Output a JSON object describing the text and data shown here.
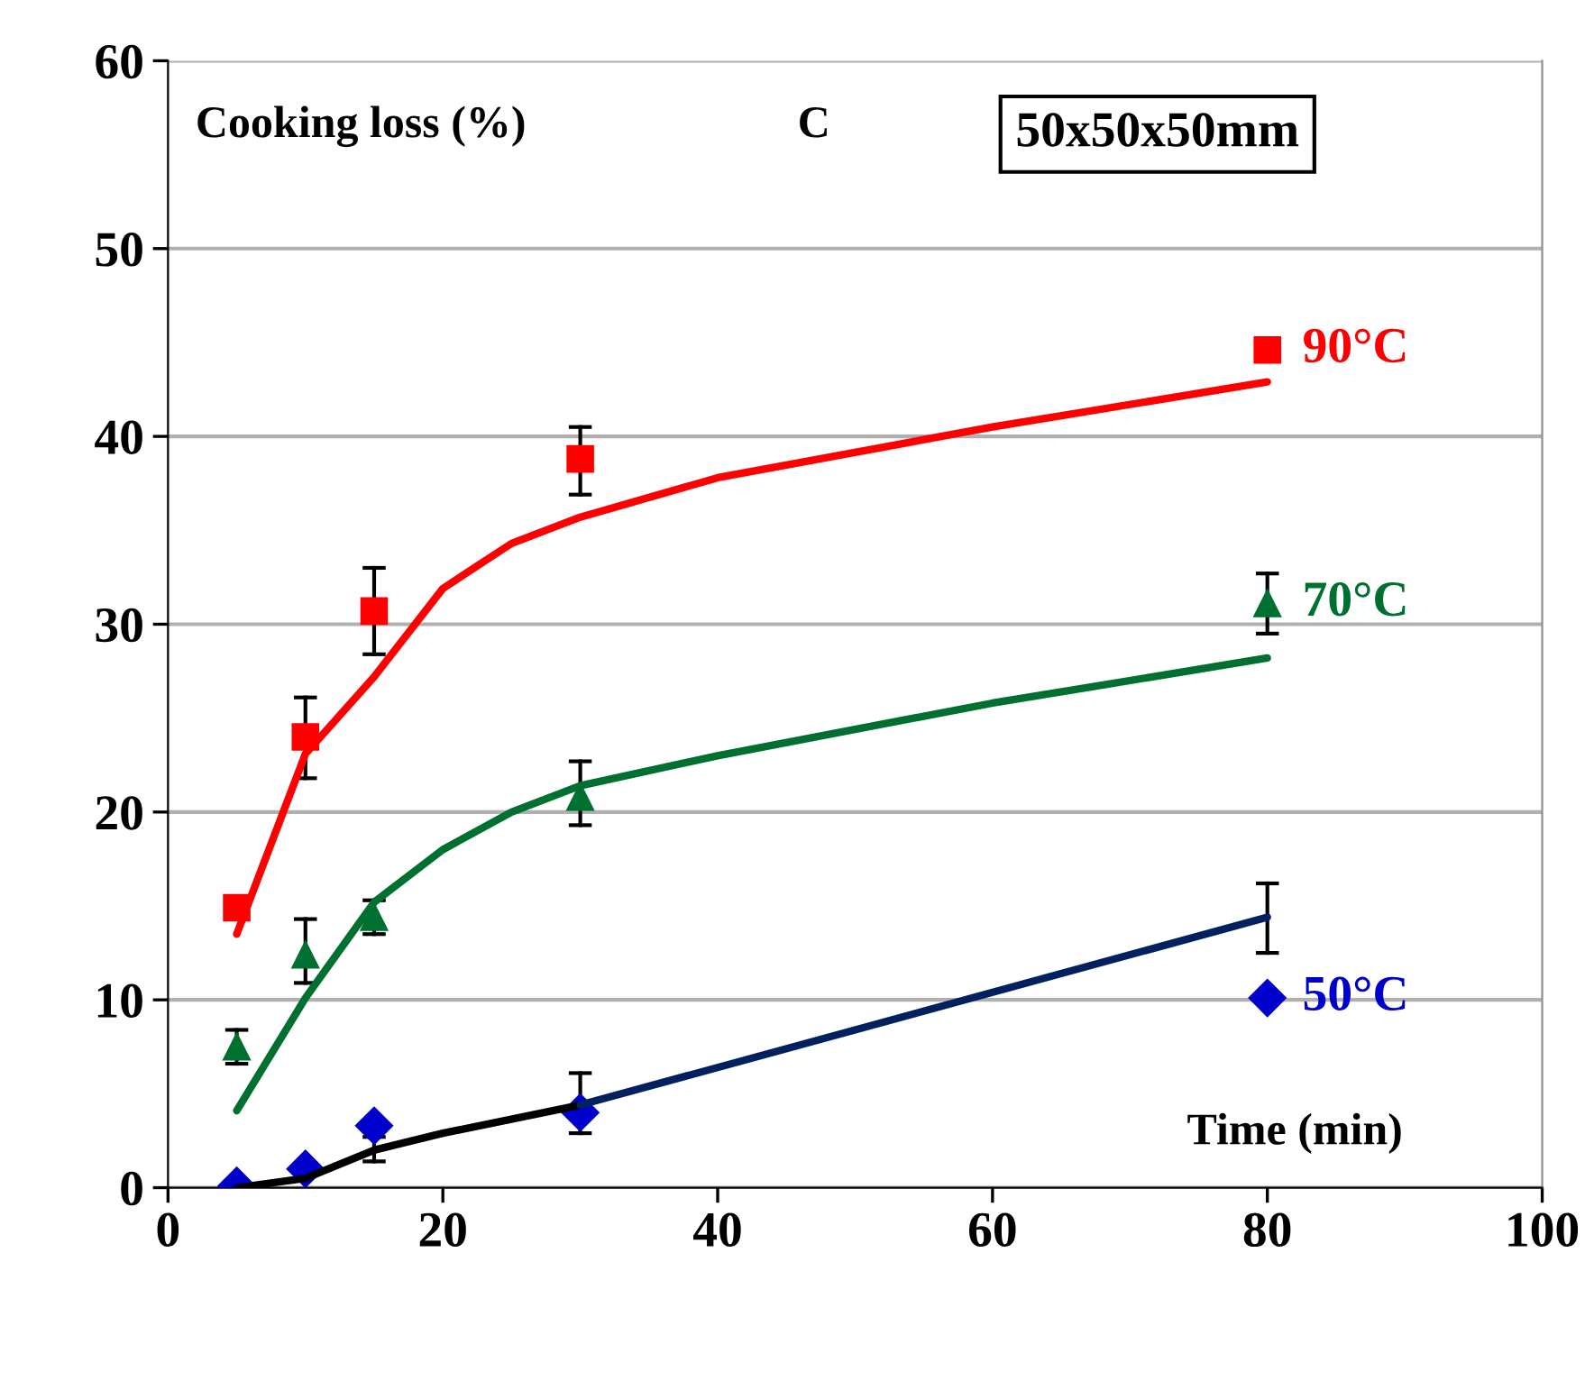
{
  "chart_data": {
    "type": "scatter",
    "xlim": [
      0,
      100
    ],
    "ylim": [
      0,
      60
    ],
    "xticks": [
      0,
      20,
      40,
      60,
      80,
      100
    ],
    "yticks": [
      0,
      10,
      20,
      30,
      40,
      50,
      60
    ],
    "grid": "y",
    "xlabel": "Time (min)",
    "ylabel": "Cooking loss (%)",
    "annotations": [
      "C",
      "50x50x50mm"
    ],
    "series": [
      {
        "name": "90°C",
        "color": "#ff0000",
        "marker": "square",
        "x": [
          5,
          10,
          15,
          30,
          80
        ],
        "values": [
          14.9,
          24.0,
          30.7,
          38.8,
          44.6
        ],
        "errors": [
          null,
          [
            21.8,
            26.1
          ],
          [
            28.4,
            33.0
          ],
          [
            36.9,
            40.5
          ],
          null
        ]
      },
      {
        "name": "70°C",
        "color": "#007030",
        "marker": "triangle",
        "x": [
          5,
          10,
          15,
          30,
          80
        ],
        "values": [
          7.5,
          12.4,
          14.4,
          20.8,
          31.1
        ],
        "errors": [
          0.9,
          [
            10.9,
            14.3
          ],
          0.9,
          [
            19.3,
            22.7
          ],
          [
            29.5,
            32.7
          ]
        ]
      },
      {
        "name": "50°C",
        "color": "#0000cc",
        "marker": "diamond",
        "x": [
          5,
          10,
          15,
          30,
          80
        ],
        "values": [
          0.1,
          1.0,
          3.3,
          4.0,
          10.1
        ],
        "errors": [
          null,
          null,
          [
            1.4,
            2.7
          ],
          [
            2.9,
            6.1
          ],
          [
            12.5,
            16.2
          ]
        ]
      },
      {
        "type": "line",
        "color": "#ff0000",
        "x": [
          5,
          10,
          15,
          20,
          25,
          30,
          40,
          60,
          80
        ],
        "values": [
          13.5,
          23.1,
          27.2,
          31.9,
          34.3,
          35.7,
          37.8,
          40.5,
          42.9
        ]
      },
      {
        "type": "line",
        "color": "#007030",
        "x": [
          5,
          10,
          15,
          20,
          25,
          30,
          40,
          60,
          80
        ],
        "values": [
          4.1,
          10.1,
          15.2,
          18.0,
          20.0,
          21.4,
          23.0,
          25.8,
          28.2
        ]
      },
      {
        "type": "line",
        "color": "#000000",
        "x": [
          5,
          10,
          15,
          20,
          30
        ],
        "values": [
          0,
          0.5,
          2.0,
          2.9,
          4.4
        ]
      },
      {
        "type": "line",
        "color": "#002060",
        "x": [
          30,
          80
        ],
        "values": [
          4.4,
          14.4
        ]
      }
    ]
  }
}
